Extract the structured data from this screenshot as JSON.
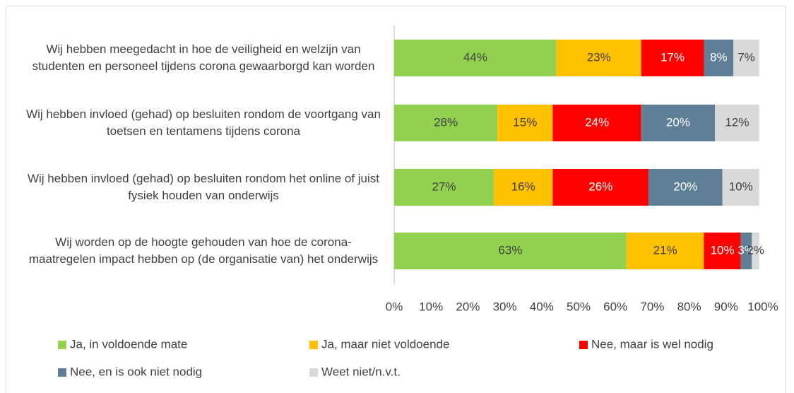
{
  "chart_data": {
    "type": "stacked_barh",
    "categories": [
      "Wij hebben meegedacht in hoe de veiligheid en welzijn van studenten en personeel tijdens corona gewaarborgd kan worden",
      "Wij hebben invloed (gehad) op besluiten rondom de voortgang van toetsen en tentamens tijdens corona",
      "Wij hebben invloed (gehad) op besluiten rondom het online of juist fysiek houden van onderwijs",
      "Wij worden op de hoogte gehouden van hoe de corona-maatregelen impact hebben op (de organisatie van) het onderwijs"
    ],
    "series": [
      {
        "name": "Ja, in voldoende mate",
        "color": "#92d050",
        "text_color": "#404040",
        "values": [
          44,
          28,
          27,
          63
        ],
        "value_labels": [
          "44%",
          "28%",
          "27%",
          "63%"
        ]
      },
      {
        "name": "Ja, maar niet voldoende",
        "color": "#ffc000",
        "text_color": "#404040",
        "values": [
          23,
          15,
          16,
          21
        ],
        "value_labels": [
          "23%",
          "15%",
          "16%",
          "21%"
        ]
      },
      {
        "name": "Nee, maar is wel nodig",
        "color": "#ff0000",
        "text_color": "#ffffff",
        "values": [
          17,
          24,
          26,
          10
        ],
        "value_labels": [
          "17%",
          "24%",
          "26%",
          "10%"
        ]
      },
      {
        "name": "Nee, en is ook niet nodig",
        "color": "#5f7f96",
        "text_color": "#ffffff",
        "values": [
          8,
          20,
          20,
          3
        ],
        "value_labels": [
          "8%",
          "20%",
          "20%",
          "3%"
        ]
      },
      {
        "name": "Weet niet/n.v.t.",
        "color": "#d9d9d9",
        "text_color": "#404040",
        "values": [
          7,
          12,
          10,
          2
        ],
        "value_labels": [
          "7%",
          "12%",
          "10%",
          "2%"
        ]
      }
    ],
    "xlim": [
      0,
      100
    ],
    "xticks": [
      {
        "value": 0,
        "label": "0%"
      },
      {
        "value": 10,
        "label": "10%"
      },
      {
        "value": 20,
        "label": "20%"
      },
      {
        "value": 30,
        "label": "30%"
      },
      {
        "value": 40,
        "label": "40%"
      },
      {
        "value": 50,
        "label": "50%"
      },
      {
        "value": 60,
        "label": "60%"
      },
      {
        "value": 70,
        "label": "70%"
      },
      {
        "value": 80,
        "label": "80%"
      },
      {
        "value": 90,
        "label": "90%"
      },
      {
        "value": 100,
        "label": "100%"
      }
    ],
    "legend": "bottom"
  }
}
